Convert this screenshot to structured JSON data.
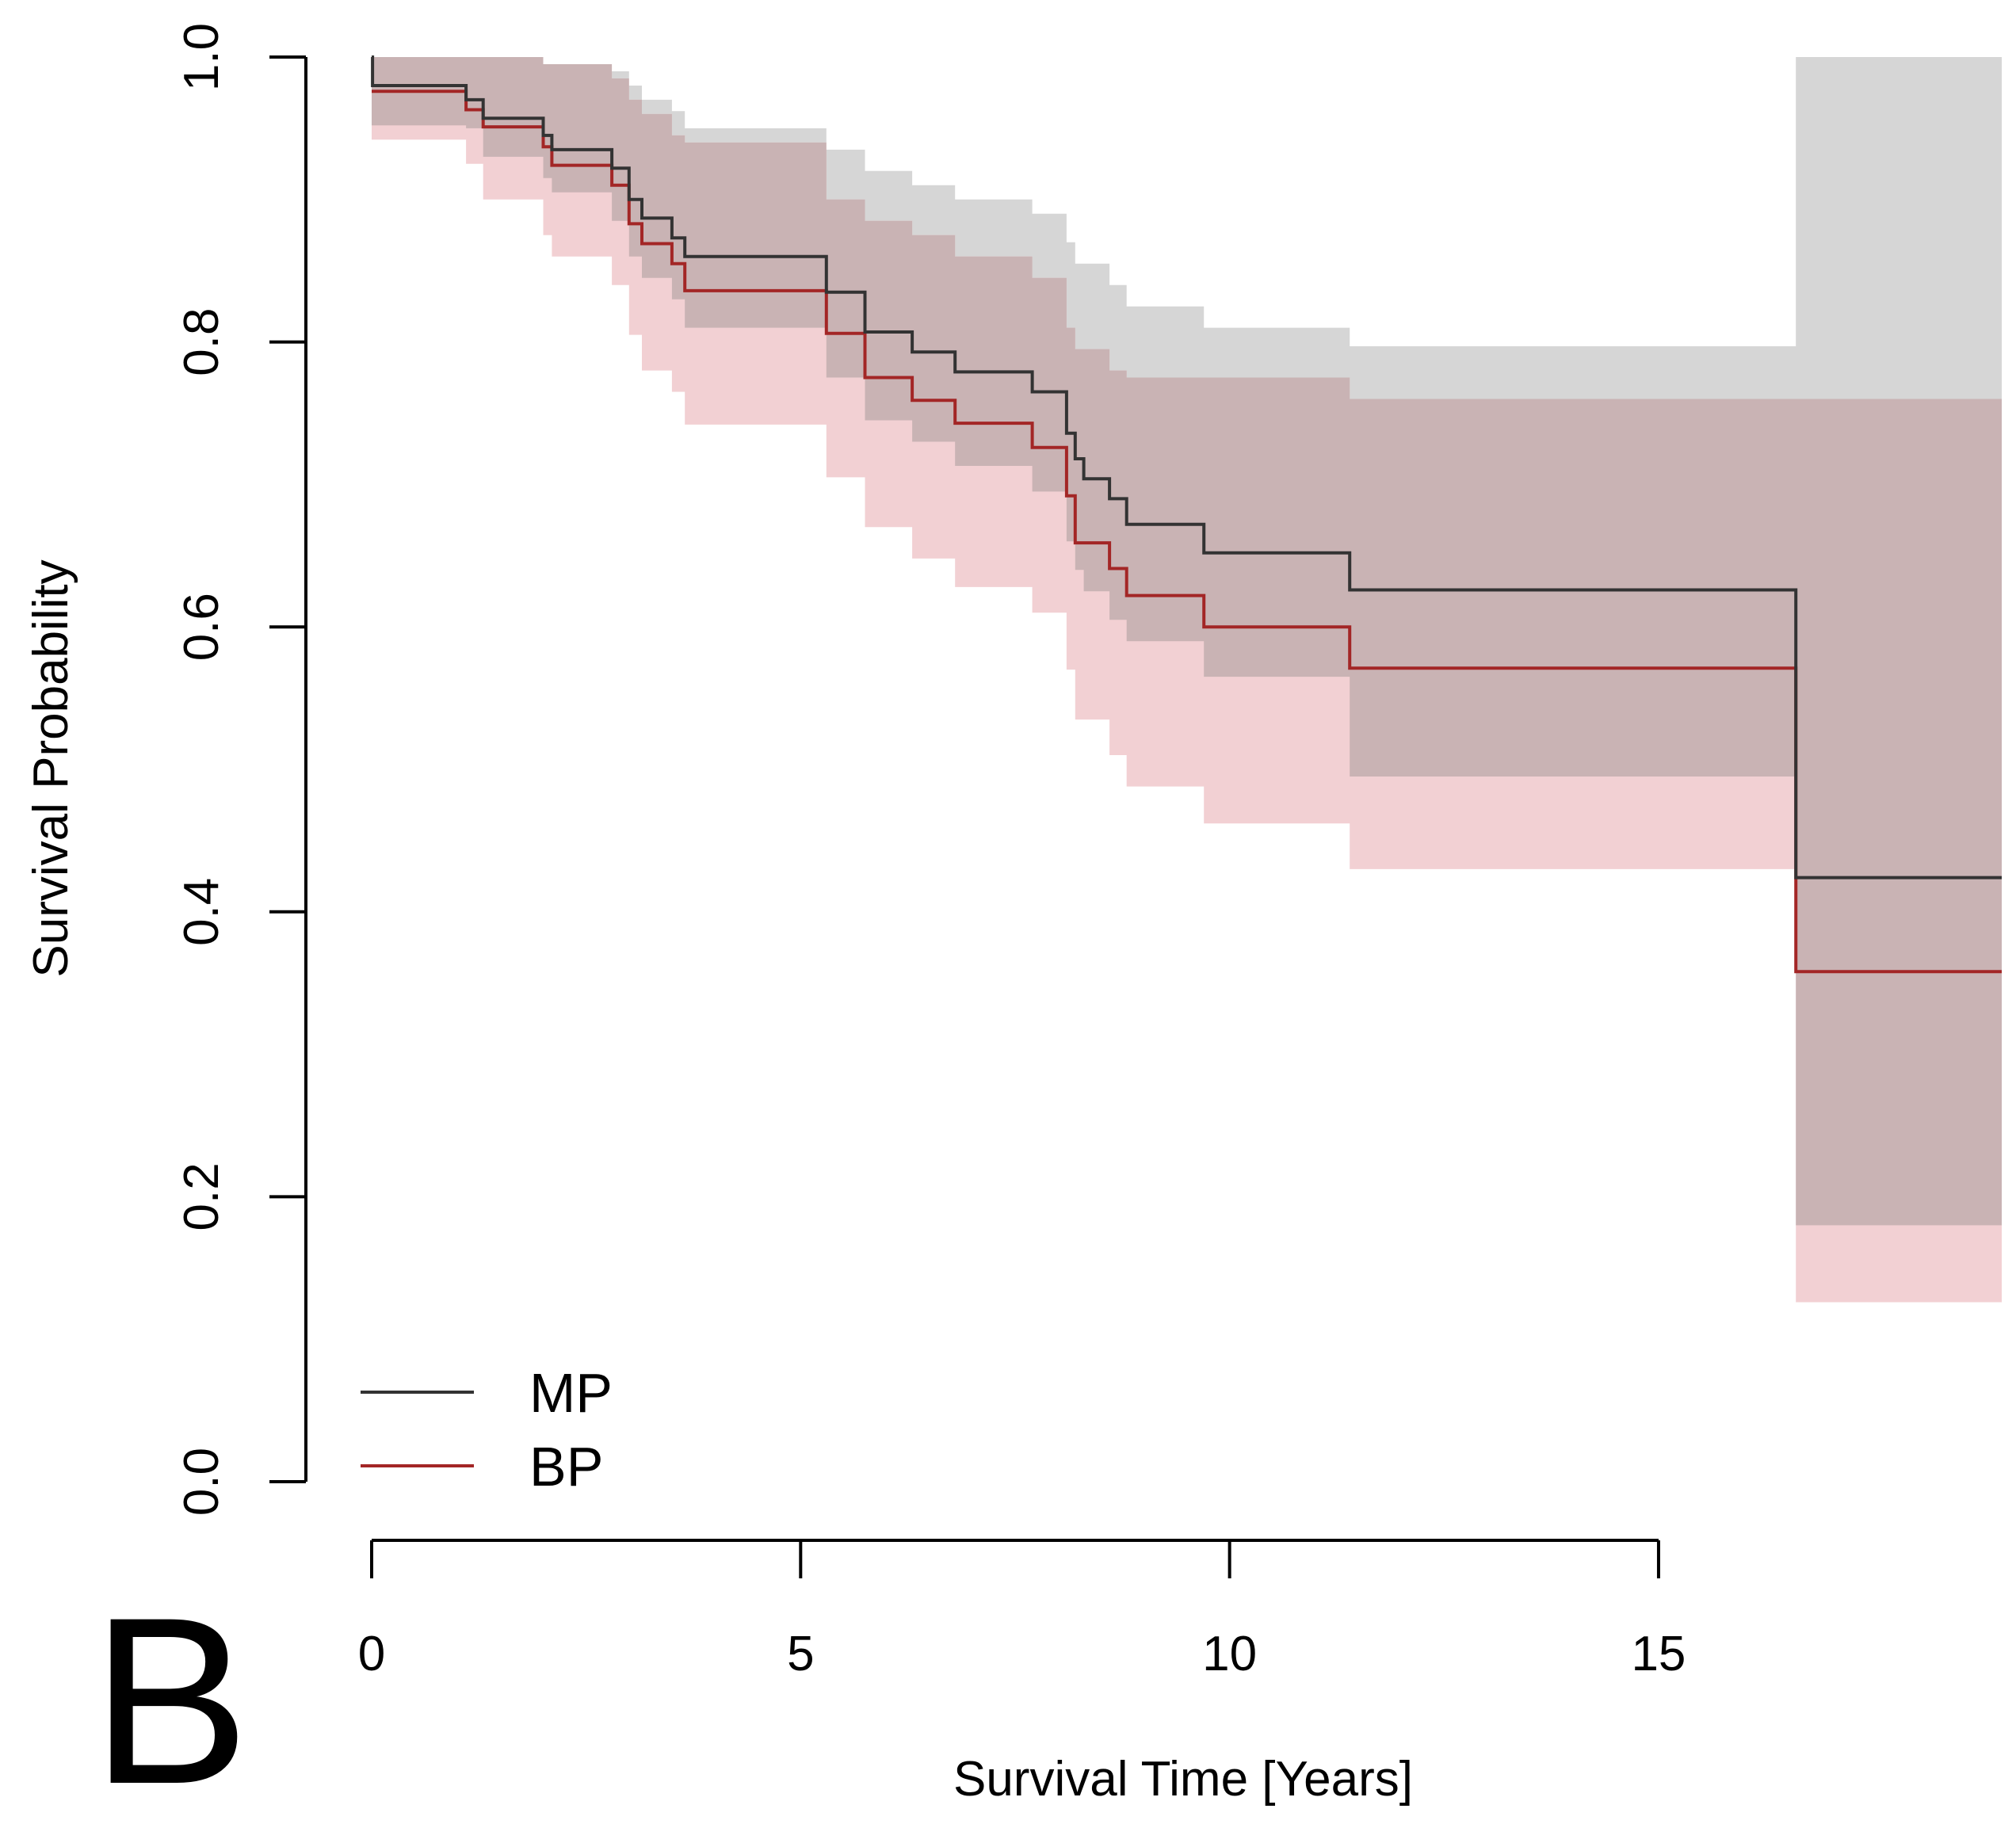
{
  "panel_label": "B",
  "chart_data": {
    "type": "line",
    "title": "",
    "xlabel": "Survival Time [Years]",
    "ylabel": "Survival Probability",
    "xlim": [
      0,
      19
    ],
    "ylim": [
      0,
      1
    ],
    "xticks": [
      0,
      5,
      10,
      15
    ],
    "xtick_labels": [
      "0",
      "5",
      "10",
      "15"
    ],
    "yticks": [
      0.0,
      0.2,
      0.4,
      0.6,
      0.8,
      1.0
    ],
    "ytick_labels": [
      "0.0",
      "0.2",
      "0.4",
      "0.6",
      "0.8",
      "1.0"
    ],
    "grid": false,
    "legend_position": "bottom-left",
    "series": [
      {
        "name": "MP",
        "color": "#333333",
        "band_color": "#d6d6d6",
        "steps": [
          [
            0,
            1.0
          ],
          [
            0.01,
            0.98
          ],
          [
            1.1,
            0.97
          ],
          [
            1.3,
            0.957
          ],
          [
            2.0,
            0.945
          ],
          [
            2.1,
            0.935
          ],
          [
            2.8,
            0.922
          ],
          [
            3.0,
            0.9
          ],
          [
            3.15,
            0.887
          ],
          [
            3.5,
            0.873
          ],
          [
            3.65,
            0.86
          ],
          [
            5.3,
            0.835
          ],
          [
            5.75,
            0.807
          ],
          [
            6.3,
            0.793
          ],
          [
            6.8,
            0.779
          ],
          [
            7.7,
            0.765
          ],
          [
            8.1,
            0.736
          ],
          [
            8.2,
            0.718
          ],
          [
            8.3,
            0.704
          ],
          [
            8.6,
            0.69
          ],
          [
            8.8,
            0.672
          ],
          [
            9.7,
            0.652
          ],
          [
            11.4,
            0.626
          ],
          [
            16.6,
            0.424
          ],
          [
            19,
            0.424
          ]
        ],
        "ci_lower": [
          [
            0,
            0.952
          ],
          [
            1.1,
            0.95
          ],
          [
            1.3,
            0.93
          ],
          [
            2.0,
            0.915
          ],
          [
            2.1,
            0.905
          ],
          [
            2.8,
            0.885
          ],
          [
            3.0,
            0.86
          ],
          [
            3.15,
            0.845
          ],
          [
            3.5,
            0.83
          ],
          [
            3.65,
            0.81
          ],
          [
            5.3,
            0.775
          ],
          [
            5.75,
            0.745
          ],
          [
            6.3,
            0.73
          ],
          [
            6.8,
            0.713
          ],
          [
            7.7,
            0.695
          ],
          [
            8.1,
            0.66
          ],
          [
            8.2,
            0.64
          ],
          [
            8.3,
            0.625
          ],
          [
            8.6,
            0.605
          ],
          [
            8.8,
            0.59
          ],
          [
            9.7,
            0.565
          ],
          [
            11.4,
            0.495
          ],
          [
            16.6,
            0.18
          ],
          [
            19,
            0.18
          ]
        ],
        "ci_upper": [
          [
            0,
            1.0
          ],
          [
            2.0,
            0.995
          ],
          [
            2.8,
            0.99
          ],
          [
            3.0,
            0.98
          ],
          [
            3.15,
            0.97
          ],
          [
            3.5,
            0.962
          ],
          [
            3.65,
            0.95
          ],
          [
            5.3,
            0.935
          ],
          [
            5.75,
            0.92
          ],
          [
            6.3,
            0.91
          ],
          [
            6.8,
            0.9
          ],
          [
            7.7,
            0.89
          ],
          [
            8.1,
            0.87
          ],
          [
            8.2,
            0.855
          ],
          [
            8.6,
            0.84
          ],
          [
            8.8,
            0.825
          ],
          [
            9.7,
            0.81
          ],
          [
            11.4,
            0.797
          ],
          [
            16.6,
            1.0
          ],
          [
            19,
            1.0
          ]
        ]
      },
      {
        "name": "BP",
        "color": "#a32626",
        "band_color": "#f2d0d3",
        "steps": [
          [
            0,
            0.976
          ],
          [
            1.1,
            0.963
          ],
          [
            1.3,
            0.951
          ],
          [
            2.0,
            0.937
          ],
          [
            2.1,
            0.924
          ],
          [
            2.8,
            0.91
          ],
          [
            3.0,
            0.883
          ],
          [
            3.15,
            0.869
          ],
          [
            3.5,
            0.855
          ],
          [
            3.65,
            0.836
          ],
          [
            5.3,
            0.806
          ],
          [
            5.75,
            0.775
          ],
          [
            6.3,
            0.759
          ],
          [
            6.8,
            0.743
          ],
          [
            7.7,
            0.726
          ],
          [
            8.1,
            0.692
          ],
          [
            8.2,
            0.659
          ],
          [
            8.6,
            0.641
          ],
          [
            8.8,
            0.622
          ],
          [
            9.7,
            0.6
          ],
          [
            11.4,
            0.571
          ],
          [
            16.6,
            0.358
          ],
          [
            19,
            0.358
          ]
        ],
        "ci_lower": [
          [
            0,
            0.942
          ],
          [
            1.1,
            0.925
          ],
          [
            1.3,
            0.9
          ],
          [
            2.0,
            0.875
          ],
          [
            2.1,
            0.86
          ],
          [
            2.8,
            0.84
          ],
          [
            3.0,
            0.805
          ],
          [
            3.15,
            0.78
          ],
          [
            3.5,
            0.765
          ],
          [
            3.65,
            0.742
          ],
          [
            5.3,
            0.705
          ],
          [
            5.75,
            0.67
          ],
          [
            6.3,
            0.648
          ],
          [
            6.8,
            0.628
          ],
          [
            7.7,
            0.61
          ],
          [
            8.1,
            0.57
          ],
          [
            8.2,
            0.535
          ],
          [
            8.6,
            0.51
          ],
          [
            8.8,
            0.488
          ],
          [
            9.7,
            0.462
          ],
          [
            11.4,
            0.43
          ],
          [
            16.6,
            0.126
          ],
          [
            19,
            0.126
          ]
        ],
        "ci_upper": [
          [
            0,
            1.0
          ],
          [
            2.0,
            0.995
          ],
          [
            2.8,
            0.985
          ],
          [
            3.0,
            0.97
          ],
          [
            3.15,
            0.96
          ],
          [
            3.5,
            0.945
          ],
          [
            3.65,
            0.94
          ],
          [
            5.3,
            0.9
          ],
          [
            5.75,
            0.885
          ],
          [
            6.3,
            0.875
          ],
          [
            6.8,
            0.86
          ],
          [
            7.7,
            0.845
          ],
          [
            8.1,
            0.81
          ],
          [
            8.2,
            0.795
          ],
          [
            8.6,
            0.78
          ],
          [
            8.8,
            0.775
          ],
          [
            9.7,
            0.775
          ],
          [
            11.4,
            0.76
          ],
          [
            16.6,
            0.76
          ],
          [
            19,
            0.76
          ]
        ]
      }
    ],
    "overlap_color": "#c9b3b4"
  }
}
